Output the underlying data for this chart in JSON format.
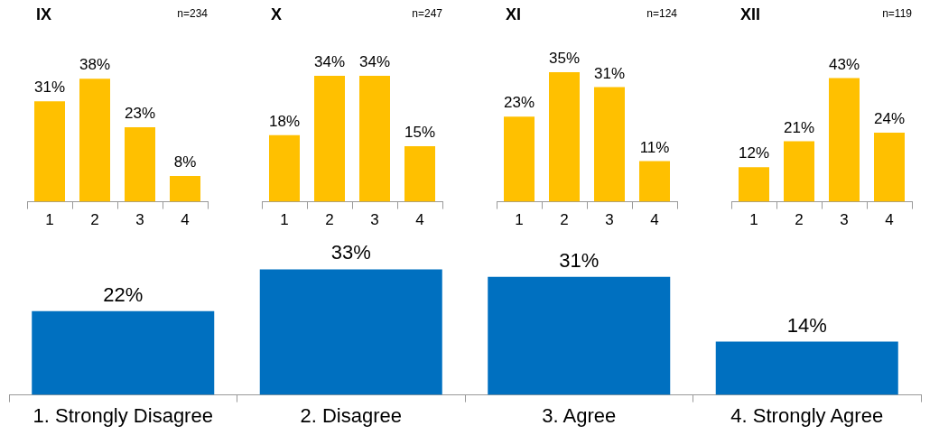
{
  "chart_data": [
    {
      "type": "bar",
      "title": "IX",
      "annotations": [
        "n=234"
      ],
      "categories": [
        "1",
        "2",
        "3",
        "4"
      ],
      "values": [
        31,
        38,
        23,
        8
      ],
      "value_labels": [
        "31%",
        "38%",
        "23%",
        "8%"
      ],
      "color": "#ffc000",
      "tick_labels": "x",
      "grid": false,
      "legend": false
    },
    {
      "type": "bar",
      "title": "X",
      "annotations": [
        "n=247"
      ],
      "categories": [
        "1",
        "2",
        "3",
        "4"
      ],
      "values": [
        18,
        34,
        34,
        15
      ],
      "value_labels": [
        "18%",
        "34%",
        "34%",
        "15%"
      ],
      "color": "#ffc000",
      "tick_labels": "x",
      "grid": false,
      "legend": false
    },
    {
      "type": "bar",
      "title": "XI",
      "annotations": [
        "n=124"
      ],
      "categories": [
        "1",
        "2",
        "3",
        "4"
      ],
      "values": [
        23,
        35,
        31,
        11
      ],
      "value_labels": [
        "23%",
        "35%",
        "31%",
        "11%"
      ],
      "color": "#ffc000",
      "tick_labels": "x",
      "grid": false,
      "legend": false
    },
    {
      "type": "bar",
      "title": "XII",
      "annotations": [
        "n=119"
      ],
      "categories": [
        "1",
        "2",
        "3",
        "4"
      ],
      "values": [
        12,
        21,
        43,
        24
      ],
      "value_labels": [
        "12%",
        "21%",
        "43%",
        "24%"
      ],
      "color": "#ffc000",
      "tick_labels": "x",
      "grid": false,
      "legend": false
    },
    {
      "type": "bar",
      "categories": [
        "1. Strongly Disagree",
        "2. Disagree",
        "3. Agree",
        "4. Strongly Agree"
      ],
      "values": [
        22,
        33,
        31,
        14
      ],
      "value_labels": [
        "22%",
        "33%",
        "31%",
        "14%"
      ],
      "color": "#0070c0",
      "tick_labels": "x",
      "grid": false,
      "legend": false
    }
  ]
}
